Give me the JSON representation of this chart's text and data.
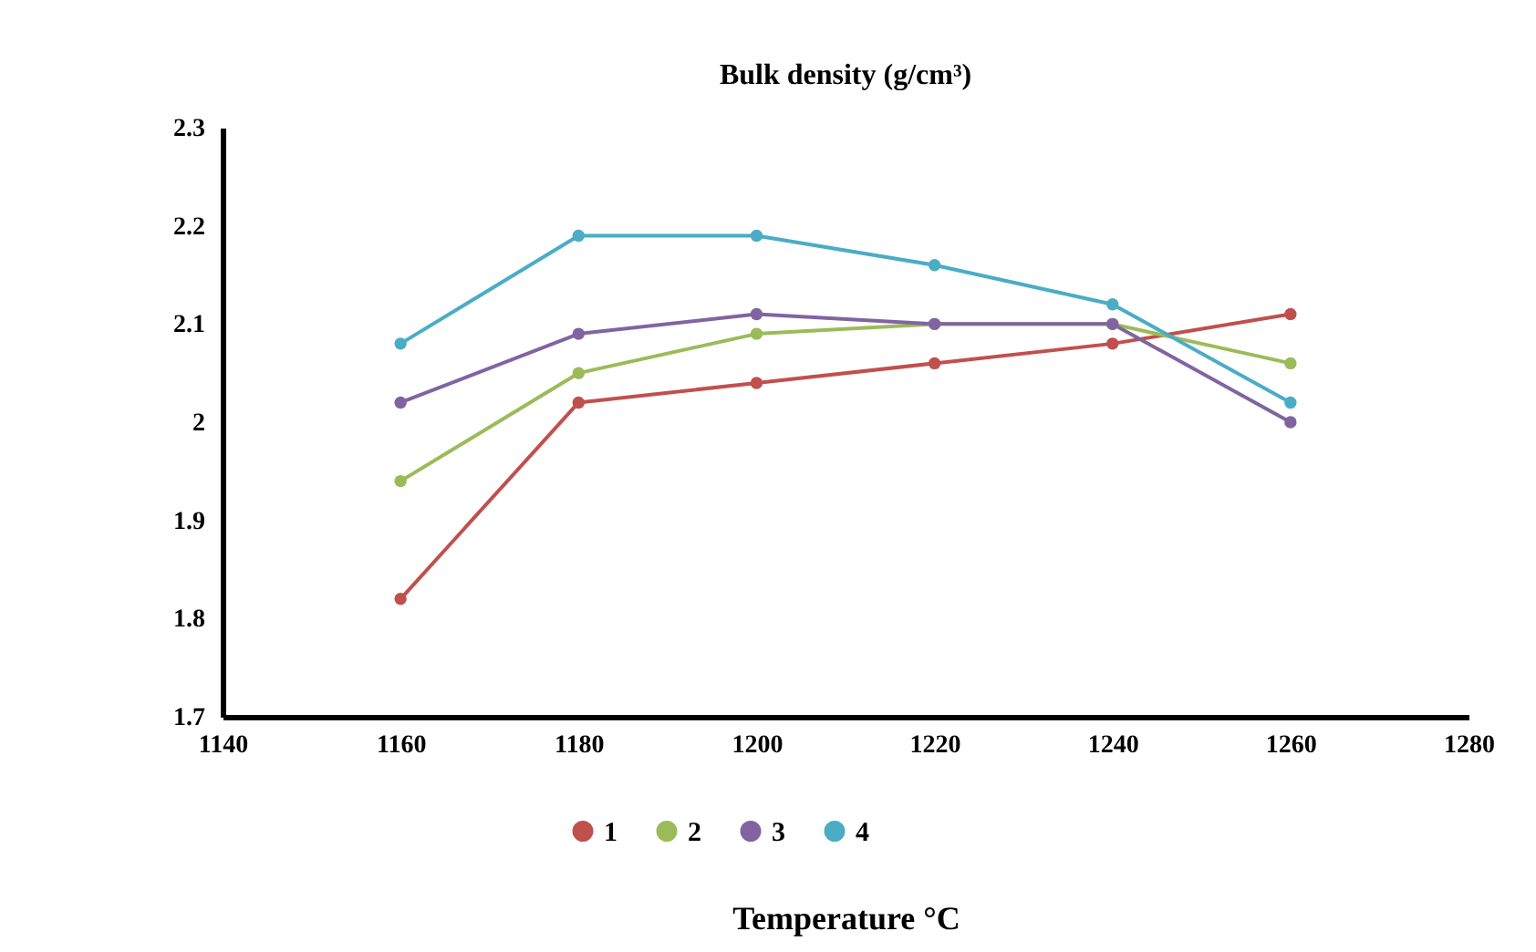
{
  "chart_data": {
    "type": "line",
    "title": "Bulk density (g/cm³)",
    "xlabel": "Temperature °C",
    "x": [
      1160,
      1180,
      1200,
      1220,
      1240,
      1260
    ],
    "series": [
      {
        "name": "1",
        "color": "#c0504d",
        "values": [
          1.82,
          2.02,
          2.04,
          2.06,
          2.08,
          2.11
        ]
      },
      {
        "name": "2",
        "color": "#9bbb59",
        "values": [
          1.94,
          2.05,
          2.09,
          2.1,
          2.1,
          2.06
        ]
      },
      {
        "name": "3",
        "color": "#8064a2",
        "values": [
          2.02,
          2.09,
          2.11,
          2.1,
          2.1,
          2.0
        ]
      },
      {
        "name": "4",
        "color": "#4bacc6",
        "values": [
          2.08,
          2.19,
          2.19,
          2.16,
          2.12,
          2.02
        ]
      }
    ],
    "xlim": [
      1140,
      1280
    ],
    "xticks": [
      1140,
      1160,
      1180,
      1200,
      1220,
      1240,
      1260,
      1280
    ],
    "ylim": [
      1.7,
      2.3
    ],
    "yticks": [
      1.7,
      1.8,
      1.9,
      2,
      2.1,
      2.2,
      2.3
    ],
    "legend": "bottom",
    "marker": "circle"
  }
}
